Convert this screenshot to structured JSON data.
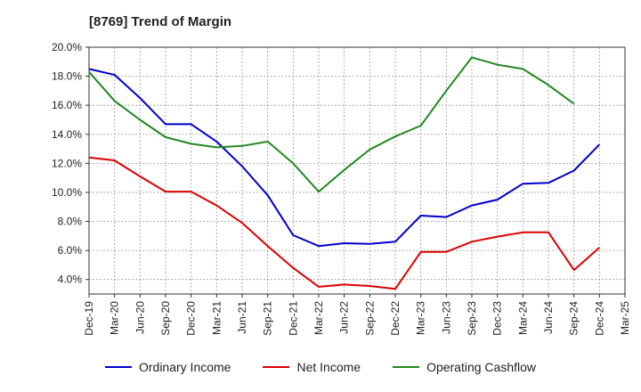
{
  "title": "[8769]  Trend of Margin",
  "chart_data": {
    "type": "line",
    "title": "[8769]  Trend of Margin",
    "xlabel": "",
    "ylabel": "",
    "x": [
      "Dec-19",
      "Mar-20",
      "Jun-20",
      "Sep-20",
      "Dec-20",
      "Mar-21",
      "Jun-21",
      "Sep-21",
      "Dec-21",
      "Mar-22",
      "Jun-22",
      "Sep-22",
      "Dec-22",
      "Mar-23",
      "Jun-23",
      "Sep-23",
      "Dec-23",
      "Mar-24",
      "Jun-24",
      "Sep-24",
      "Dec-24",
      "Mar-25"
    ],
    "yticks": [
      "4.0%",
      "6.0%",
      "8.0%",
      "10.0%",
      "12.0%",
      "14.0%",
      "16.0%",
      "18.0%",
      "20.0%"
    ],
    "ylim": [
      3.0,
      20.0
    ],
    "grid": true,
    "legend_position": "bottom",
    "series": [
      {
        "name": "Ordinary Income",
        "color": "#0000cc",
        "values": [
          18.5,
          18.1,
          16.5,
          14.7,
          14.7,
          13.5,
          11.8,
          9.8,
          7.05,
          6.3,
          6.5,
          6.45,
          6.6,
          8.4,
          8.3,
          9.1,
          9.5,
          10.6,
          10.65,
          11.5,
          13.3,
          null
        ]
      },
      {
        "name": "Net Income",
        "color": "#dd0000",
        "values": [
          12.4,
          12.2,
          11.1,
          10.05,
          10.05,
          9.1,
          7.9,
          6.3,
          4.8,
          3.5,
          3.65,
          3.55,
          3.35,
          5.9,
          5.9,
          6.6,
          6.95,
          7.25,
          7.25,
          4.65,
          6.2,
          null
        ]
      },
      {
        "name": "Operating Cashflow",
        "color": "#228822",
        "values": [
          18.3,
          16.3,
          15.0,
          13.8,
          13.35,
          13.1,
          13.2,
          13.5,
          12.0,
          10.05,
          11.55,
          12.95,
          13.85,
          14.6,
          17.0,
          19.3,
          18.8,
          18.5,
          17.4,
          16.1,
          null,
          null
        ]
      }
    ]
  }
}
